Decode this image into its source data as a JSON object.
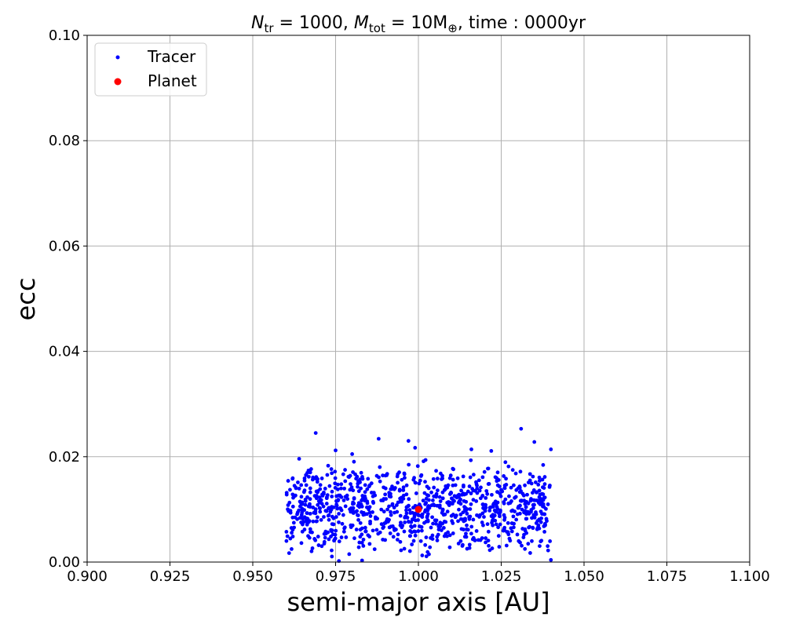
{
  "chart_data": {
    "type": "scatter",
    "title": {
      "n_symbol": "N",
      "n_sub": "tr",
      "n_value": " = 1000, ",
      "m_symbol": "M",
      "m_sub": "tot",
      "m_value": " = 10M",
      "m_sub2": "⊕",
      "time_text": ", time : 0000yr"
    },
    "xlabel": "semi-major axis [AU]",
    "ylabel": "ecc",
    "xlim": [
      0.9,
      1.1
    ],
    "ylim": [
      0.0,
      0.1
    ],
    "xticks": [
      0.9,
      0.925,
      0.95,
      0.975,
      1.0,
      1.025,
      1.05,
      1.075,
      1.1
    ],
    "xtick_labels": [
      "0.900",
      "0.925",
      "0.950",
      "0.975",
      "1.000",
      "1.025",
      "1.050",
      "1.075",
      "1.100"
    ],
    "yticks": [
      0.0,
      0.02,
      0.04,
      0.06,
      0.08,
      0.1
    ],
    "ytick_labels": [
      "0.00",
      "0.02",
      "0.04",
      "0.06",
      "0.08",
      "0.10"
    ],
    "grid": true,
    "legend": {
      "position": "top-left",
      "entries": [
        {
          "label": "Tracer",
          "color": "#0000ff"
        },
        {
          "label": "Planet",
          "color": "#ff0000"
        }
      ]
    },
    "series": [
      {
        "name": "Tracer",
        "color": "#0000ff",
        "n_points": 1000,
        "a_range": [
          0.96,
          1.04
        ],
        "e_range": [
          0.0,
          0.025
        ],
        "sample_points": [
          {
            "a": 0.969,
            "e": 0.0245
          },
          {
            "a": 0.988,
            "e": 0.0234
          },
          {
            "a": 0.997,
            "e": 0.023
          },
          {
            "a": 1.031,
            "e": 0.0253
          },
          {
            "a": 1.035,
            "e": 0.0228
          },
          {
            "a": 1.04,
            "e": 0.0214
          },
          {
            "a": 0.964,
            "e": 0.0196
          },
          {
            "a": 0.975,
            "e": 0.0212
          },
          {
            "a": 0.98,
            "e": 0.0205
          },
          {
            "a": 0.999,
            "e": 0.0217
          },
          {
            "a": 1.016,
            "e": 0.0214
          },
          {
            "a": 1.022,
            "e": 0.0211
          },
          {
            "a": 0.976,
            "e": 0.0002
          },
          {
            "a": 0.983,
            "e": 0.0003
          },
          {
            "a": 1.04,
            "e": 0.0004
          }
        ]
      },
      {
        "name": "Planet",
        "color": "#ff0000",
        "points": [
          {
            "a": 1.0,
            "e": 0.01
          }
        ]
      }
    ]
  }
}
